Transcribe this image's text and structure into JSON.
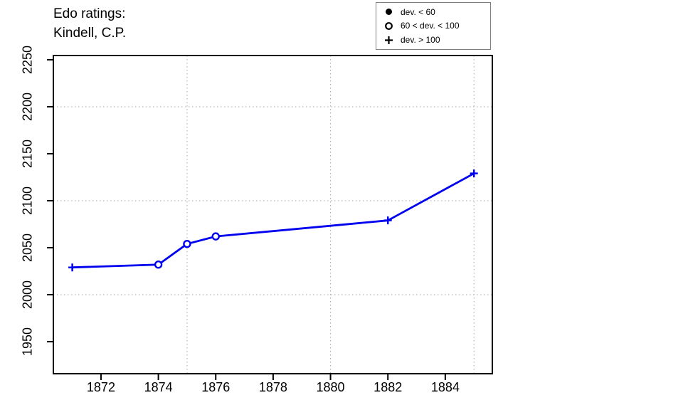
{
  "title": {
    "line1": "Edo ratings:",
    "line2": "Kindell, C.P."
  },
  "colors": {
    "series": "#0000EE",
    "grid": "#A6A6A6",
    "axis": "#000000",
    "legend_border": "#808080",
    "background": "#FFFFFF"
  },
  "legend": {
    "position": "top-right",
    "entries": [
      {
        "symbol": "circle-filled",
        "label": "dev. < 60"
      },
      {
        "symbol": "circle-open",
        "label": "60 < dev. < 100"
      },
      {
        "symbol": "plus",
        "label": "dev. > 100"
      }
    ]
  },
  "chart_data": {
    "type": "line",
    "title": "Edo ratings: Kindell, C.P.",
    "xlabel": "",
    "ylabel": "",
    "xlim": [
      1870.34,
      1885.64
    ],
    "ylim": [
      1915.9,
      2254.5
    ],
    "x_ticks": [
      1872,
      1874,
      1876,
      1878,
      1880,
      1882,
      1884
    ],
    "y_ticks": [
      1950,
      2000,
      2050,
      2100,
      2150,
      2200,
      2250
    ],
    "x_gridlines": [
      1875,
      1880,
      1885
    ],
    "y_gridlines": [
      2000,
      2100,
      2200
    ],
    "grid": "dotted",
    "series": [
      {
        "name": "Kindell, C.P.",
        "color": "#0000EE",
        "points": [
          {
            "year": 1871,
            "rating": 2029,
            "marker": "plus"
          },
          {
            "year": 1874,
            "rating": 2032,
            "marker": "circle-open"
          },
          {
            "year": 1875,
            "rating": 2054,
            "marker": "circle-open"
          },
          {
            "year": 1876,
            "rating": 2062,
            "marker": "circle-open"
          },
          {
            "year": 1882,
            "rating": 2079,
            "marker": "plus"
          },
          {
            "year": 1885,
            "rating": 2129,
            "marker": "plus"
          }
        ]
      }
    ]
  }
}
